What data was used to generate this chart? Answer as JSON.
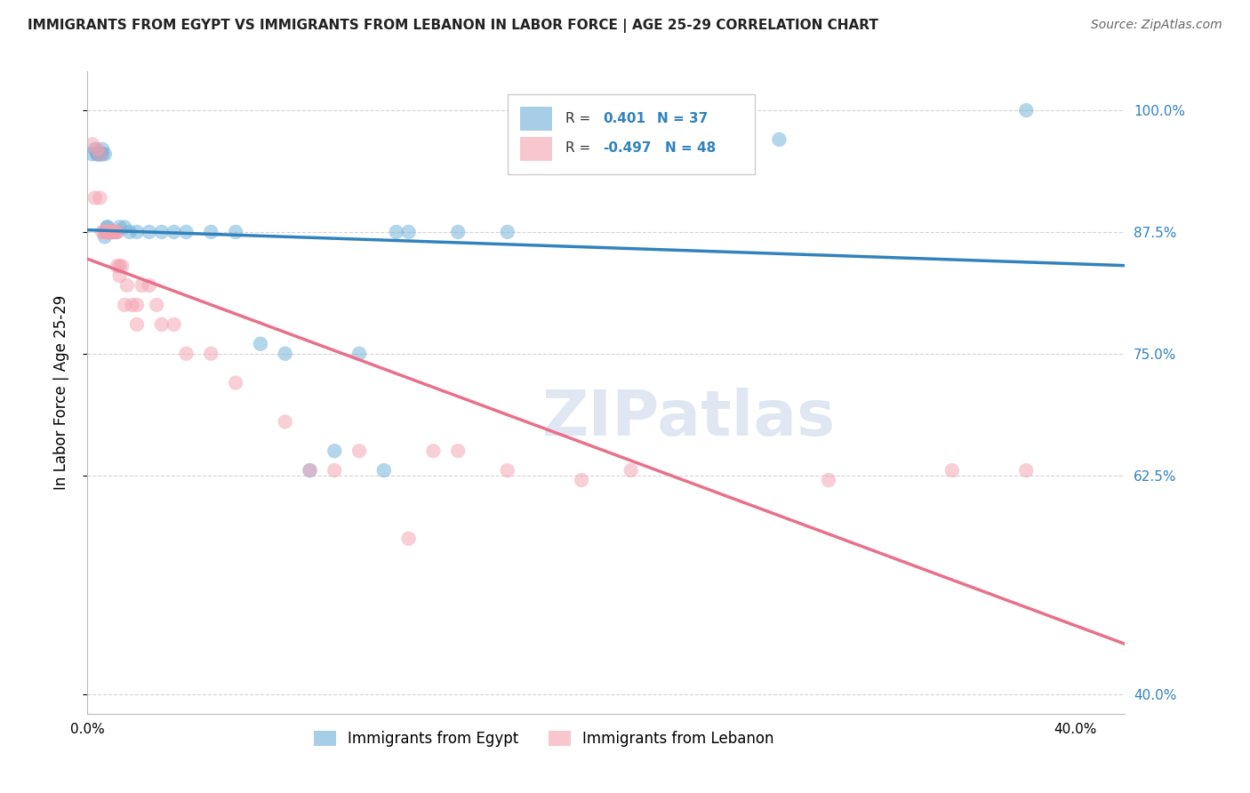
{
  "title": "IMMIGRANTS FROM EGYPT VS IMMIGRANTS FROM LEBANON IN LABOR FORCE | AGE 25-29 CORRELATION CHART",
  "source": "Source: ZipAtlas.com",
  "ylabel": "In Labor Force | Age 25-29",
  "xlim": [
    0.0,
    0.42
  ],
  "ylim": [
    0.38,
    1.04
  ],
  "yticks": [
    0.4,
    0.625,
    0.75,
    0.875,
    1.0
  ],
  "ytick_labels": [
    "40.0%",
    "62.5%",
    "75.0%",
    "87.5%",
    "100.0%"
  ],
  "xtick_vals": [
    0.0,
    0.05,
    0.1,
    0.15,
    0.2,
    0.25,
    0.3,
    0.35,
    0.4
  ],
  "xtick_labels": [
    "0.0%",
    "",
    "",
    "",
    "",
    "",
    "",
    "",
    "40.0%"
  ],
  "egypt_R": 0.401,
  "egypt_N": 37,
  "lebanon_R": -0.497,
  "lebanon_N": 48,
  "egypt_color": "#6baed6",
  "lebanon_color": "#f4a0b0",
  "egypt_line_color": "#3182bd",
  "lebanon_line_color": "#e8708a",
  "grid_color": "#d0d0d0",
  "egypt_points": [
    [
      0.002,
      0.955
    ],
    [
      0.003,
      0.96
    ],
    [
      0.004,
      0.955
    ],
    [
      0.004,
      0.955
    ],
    [
      0.005,
      0.955
    ],
    [
      0.005,
      0.955
    ],
    [
      0.006,
      0.955
    ],
    [
      0.006,
      0.96
    ],
    [
      0.007,
      0.955
    ],
    [
      0.007,
      0.87
    ],
    [
      0.008,
      0.88
    ],
    [
      0.008,
      0.88
    ],
    [
      0.009,
      0.875
    ],
    [
      0.01,
      0.875
    ],
    [
      0.012,
      0.875
    ],
    [
      0.013,
      0.88
    ],
    [
      0.015,
      0.88
    ],
    [
      0.017,
      0.875
    ],
    [
      0.02,
      0.875
    ],
    [
      0.025,
      0.875
    ],
    [
      0.03,
      0.875
    ],
    [
      0.035,
      0.875
    ],
    [
      0.04,
      0.875
    ],
    [
      0.05,
      0.875
    ],
    [
      0.06,
      0.875
    ],
    [
      0.07,
      0.76
    ],
    [
      0.08,
      0.75
    ],
    [
      0.09,
      0.63
    ],
    [
      0.1,
      0.65
    ],
    [
      0.11,
      0.75
    ],
    [
      0.12,
      0.63
    ],
    [
      0.125,
      0.875
    ],
    [
      0.13,
      0.875
    ],
    [
      0.15,
      0.875
    ],
    [
      0.17,
      0.875
    ],
    [
      0.28,
      0.97
    ],
    [
      0.38,
      1.0
    ]
  ],
  "lebanon_points": [
    [
      0.002,
      0.965
    ],
    [
      0.003,
      0.91
    ],
    [
      0.004,
      0.96
    ],
    [
      0.005,
      0.91
    ],
    [
      0.005,
      0.955
    ],
    [
      0.006,
      0.875
    ],
    [
      0.007,
      0.875
    ],
    [
      0.007,
      0.875
    ],
    [
      0.008,
      0.875
    ],
    [
      0.008,
      0.875
    ],
    [
      0.009,
      0.875
    ],
    [
      0.009,
      0.875
    ],
    [
      0.01,
      0.875
    ],
    [
      0.01,
      0.875
    ],
    [
      0.01,
      0.875
    ],
    [
      0.011,
      0.875
    ],
    [
      0.011,
      0.875
    ],
    [
      0.012,
      0.875
    ],
    [
      0.012,
      0.84
    ],
    [
      0.013,
      0.84
    ],
    [
      0.013,
      0.83
    ],
    [
      0.014,
      0.84
    ],
    [
      0.015,
      0.8
    ],
    [
      0.016,
      0.82
    ],
    [
      0.018,
      0.8
    ],
    [
      0.02,
      0.8
    ],
    [
      0.02,
      0.78
    ],
    [
      0.022,
      0.82
    ],
    [
      0.025,
      0.82
    ],
    [
      0.028,
      0.8
    ],
    [
      0.03,
      0.78
    ],
    [
      0.035,
      0.78
    ],
    [
      0.04,
      0.75
    ],
    [
      0.05,
      0.75
    ],
    [
      0.06,
      0.72
    ],
    [
      0.08,
      0.68
    ],
    [
      0.09,
      0.63
    ],
    [
      0.1,
      0.63
    ],
    [
      0.11,
      0.65
    ],
    [
      0.13,
      0.56
    ],
    [
      0.14,
      0.65
    ],
    [
      0.15,
      0.65
    ],
    [
      0.17,
      0.63
    ],
    [
      0.2,
      0.62
    ],
    [
      0.22,
      0.63
    ],
    [
      0.3,
      0.62
    ],
    [
      0.35,
      0.63
    ],
    [
      0.38,
      0.63
    ]
  ]
}
